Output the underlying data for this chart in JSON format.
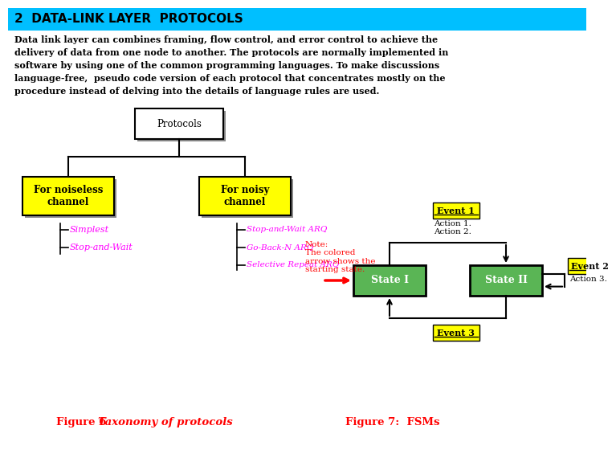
{
  "title": "2  DATA-LINK LAYER  PROTOCOLS",
  "title_bg": "#00BFFF",
  "body_text_lines": [
    "Data link layer can combines framing, flow control, and error control to achieve the",
    "delivery of data from one node to another. The protocols are normally implemented in",
    "software by using one of the common programming languages. To make discussions",
    "language-free,  pseudo code version of each protocol that concentrates mostly on the",
    "procedure instead of delving into the details of language rules are used."
  ],
  "fig6_label": "Figure 6  ",
  "fig6_italic": "Taxonomy of protocols",
  "fig7_label": "Figure 7:  FSMs",
  "note_text": "Note:\nThe colored\narrow shows the\nstarting state.",
  "protocols_box": "Protocols",
  "noiseless_box": "For noiseless\nchannel",
  "noisy_box": "For noisy\nchannel",
  "simplest": "Simplest",
  "stop_wait": "Stop-and-Wait",
  "stop_wait_arq": "Stop-and-Wait ARQ",
  "go_back": "Go-Back-N ARQ",
  "selective": "Selective Repeat ARQ",
  "state1": "State I",
  "state2": "State II",
  "event1": "Event 1",
  "event2": "Event 2",
  "event3": "Event 3",
  "action12": "Action 1.\nAction 2.",
  "action3": "Action 3.",
  "yellow": "#FFFF00",
  "green": "#5AB555",
  "cyan_title": "#00BFFF",
  "magenta": "#FF00FF",
  "red": "#FF0000",
  "black": "#000000",
  "white": "#FFFFFF",
  "dark_yellow": "#CCCC00"
}
